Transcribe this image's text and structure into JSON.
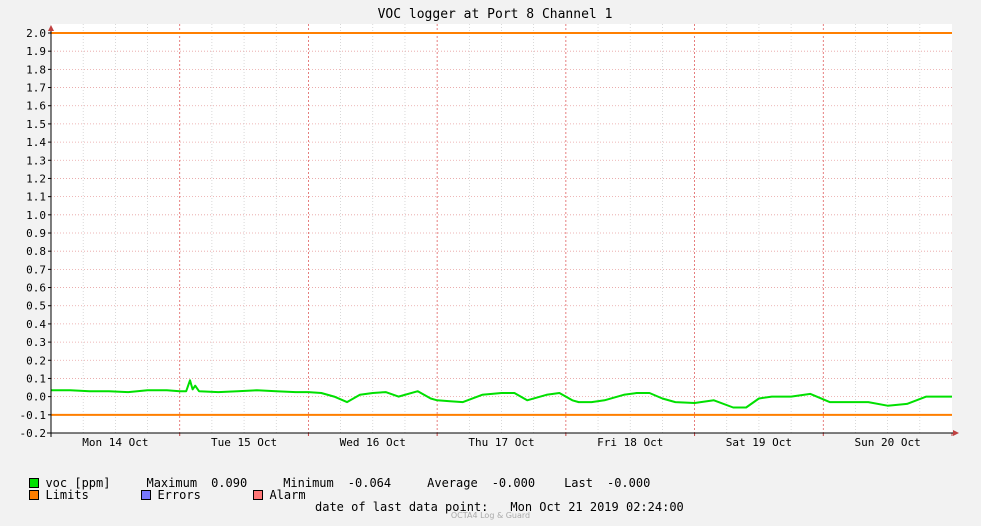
{
  "chart_data": {
    "type": "line",
    "title": "VOC logger at Port 8 Channel 1",
    "ylim": [
      -0.2,
      2.0
    ],
    "yticks": [
      "2.0",
      "1.9",
      "1.8",
      "1.7",
      "1.6",
      "1.5",
      "1.4",
      "1.3",
      "1.2",
      "1.1",
      "1.0",
      "0.9",
      "0.8",
      "0.7",
      "0.6",
      "0.5",
      "0.4",
      "0.3",
      "0.2",
      "0.1",
      "0.0",
      "-0.1",
      "-0.2"
    ],
    "x_range_days": [
      "Mon 14 Oct",
      "Sun 20 Oct end"
    ],
    "xticks": [
      "Mon 14 Oct",
      "Tue 15 Oct",
      "Wed 16 Oct",
      "Thu 17 Oct",
      "Fri 18 Oct",
      "Sat 19 Oct",
      "Sun 20 Oct"
    ],
    "limits": [
      2.0,
      -0.1
    ],
    "series": [
      {
        "name": "voc [ppm]",
        "color": "#00e000",
        "x": [
          0,
          0.15,
          0.3,
          0.45,
          0.6,
          0.75,
          0.9,
          1.0,
          1.05,
          1.08,
          1.1,
          1.12,
          1.15,
          1.3,
          1.45,
          1.6,
          1.75,
          1.9,
          2.0,
          2.1,
          2.2,
          2.3,
          2.4,
          2.5,
          2.6,
          2.7,
          2.85,
          2.95,
          3.0,
          3.1,
          3.2,
          3.35,
          3.5,
          3.6,
          3.7,
          3.85,
          3.95,
          4.0,
          4.05,
          4.1,
          4.2,
          4.3,
          4.45,
          4.55,
          4.65,
          4.75,
          4.85,
          5.0,
          5.15,
          5.3,
          5.4,
          5.5,
          5.6,
          5.75,
          5.9,
          6.05,
          6.2,
          6.35,
          6.5,
          6.65,
          6.8,
          6.95,
          7.0
        ],
        "y": [
          0.035,
          0.035,
          0.03,
          0.03,
          0.025,
          0.035,
          0.035,
          0.03,
          0.03,
          0.09,
          0.04,
          0.06,
          0.03,
          0.025,
          0.03,
          0.035,
          0.03,
          0.025,
          0.025,
          0.02,
          0.0,
          -0.03,
          0.01,
          0.02,
          0.025,
          0.0,
          0.03,
          -0.01,
          -0.02,
          -0.025,
          -0.03,
          0.01,
          0.02,
          0.02,
          -0.02,
          0.01,
          0.02,
          0.0,
          -0.02,
          -0.03,
          -0.03,
          -0.02,
          0.01,
          0.02,
          0.02,
          -0.01,
          -0.03,
          -0.035,
          -0.02,
          -0.06,
          -0.06,
          -0.01,
          0.0,
          0.0,
          0.015,
          -0.03,
          -0.03,
          -0.03,
          -0.05,
          -0.04,
          0.0,
          0.0,
          0.0
        ]
      }
    ],
    "legend_placement": "bottom-left"
  },
  "legend": {
    "series_label": "voc [ppm]",
    "limits_label": "Limits",
    "errors_label": "Errors",
    "alarm_label": "Alarm",
    "colors": {
      "voc": "#00e000",
      "limits": "#ff7f00",
      "errors": "#7777ff",
      "alarm": "#ff7777"
    }
  },
  "stats": {
    "max_label": "Maximum",
    "max_value": "0.090",
    "min_label": "Minimum",
    "min_value": "-0.064",
    "avg_label": "Average",
    "avg_value": "-0.000",
    "last_label": "Last",
    "last_value": "-0.000"
  },
  "last_point": {
    "label": "date of last data point:",
    "value": "Mon Oct 21 2019 02:24:00"
  },
  "footer": "OCTA4 Log & Guard"
}
